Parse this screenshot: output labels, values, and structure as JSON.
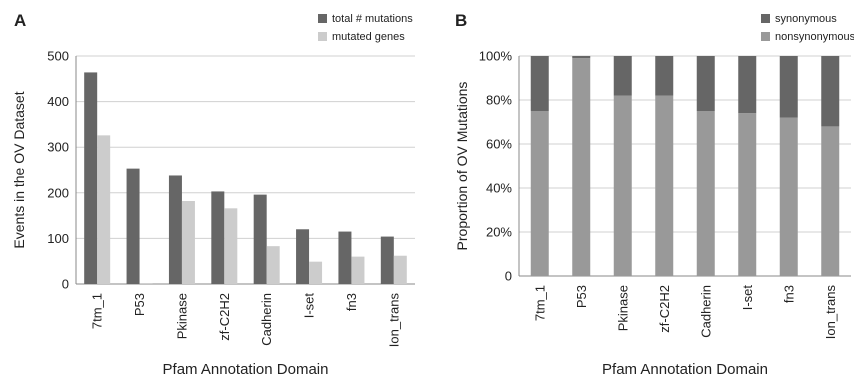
{
  "chart_data": [
    {
      "panel": "A",
      "type": "bar",
      "ylabel": "Events in the OV Dataset",
      "xlabel": "Pfam Annotation Domain",
      "ylim": [
        0,
        500
      ],
      "yticks": [
        "0",
        "100",
        "200",
        "300",
        "400",
        "500"
      ],
      "grid": true,
      "legend_position": "top-right",
      "categories": [
        "7tm_1",
        "P53",
        "Pkinase",
        "zf-C2H2",
        "Cadherin",
        "I-set",
        "fn3",
        "Ion_trans"
      ],
      "series": [
        {
          "name": "total # mutations",
          "color": "#666666",
          "values": [
            464,
            253,
            238,
            203,
            196,
            120,
            115,
            104
          ]
        },
        {
          "name": "mutated genes",
          "color": "#cccccc",
          "values": [
            326,
            2,
            182,
            166,
            83,
            49,
            60,
            62
          ]
        }
      ]
    },
    {
      "panel": "B",
      "type": "bar",
      "stacked": true,
      "ylabel": "Proportion of OV Mutations",
      "xlabel": "Pfam Annotation Domain",
      "ylim": [
        0,
        100
      ],
      "yticks": [
        "0",
        "20%",
        "40%",
        "60%",
        "80%",
        "100%"
      ],
      "grid": true,
      "legend_position": "top-right",
      "categories": [
        "7tm_1",
        "P53",
        "Pkinase",
        "zf-C2H2",
        "Cadherin",
        "I-set",
        "fn3",
        "Ion_trans"
      ],
      "series": [
        {
          "name": "nonsynonymous",
          "color": "#999999",
          "values": [
            75,
            99,
            82,
            82,
            75,
            74,
            72,
            68
          ]
        },
        {
          "name": "synonymous",
          "color": "#666666",
          "values": [
            25,
            1,
            18,
            18,
            25,
            26,
            28,
            32
          ]
        }
      ]
    }
  ]
}
